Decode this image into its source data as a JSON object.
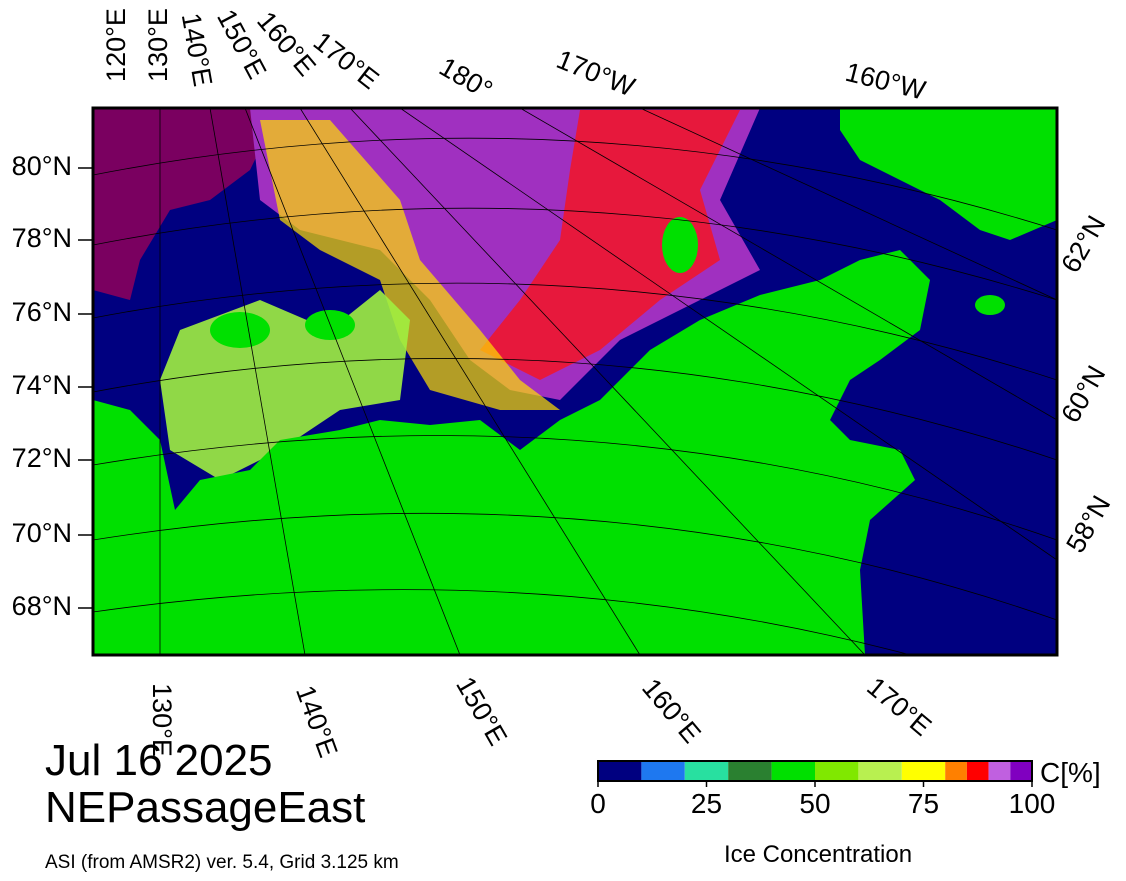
{
  "header": {
    "date": "Jul 16 2025",
    "region": "NEPassageEast",
    "source": "ASI (from AMSR2) ver. 5.4,  Grid 3.125 km"
  },
  "map": {
    "lat_labels_left": [
      "80°N",
      "78°N",
      "76°N",
      "74°N",
      "72°N",
      "70°N",
      "68°N"
    ],
    "lat_labels_right": [
      "62°N",
      "60°N",
      "58°N"
    ],
    "lon_labels_top": [
      "120°E",
      "130°E",
      "140°E",
      "150°E",
      "160°E",
      "170°E",
      "180°",
      "170°W",
      "160°W"
    ],
    "lon_labels_bottom": [
      "130°E",
      "140°E",
      "150°E",
      "160°E",
      "170°E"
    ]
  },
  "colorbar": {
    "label": "Ice Concentration",
    "unit": "C[%]",
    "lim": [
      0,
      100
    ],
    "bins": [
      0,
      10,
      20,
      30,
      40,
      50,
      60,
      70,
      80,
      85,
      90,
      95,
      100
    ],
    "colors": [
      "#000080",
      "#1e78f0",
      "#28e0a0",
      "#2a8030",
      "#00e000",
      "#80e800",
      "#b8f050",
      "#ffff00",
      "#ff8000",
      "#ff0000",
      "#c060e0",
      "#8000c0"
    ],
    "ticks": [
      0,
      25,
      50,
      75,
      100
    ]
  }
}
